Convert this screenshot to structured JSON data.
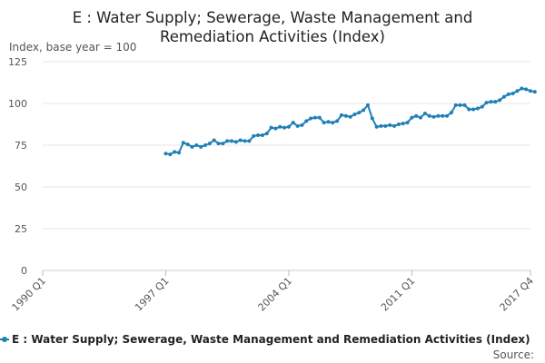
{
  "chart_data": {
    "type": "line",
    "title": "E : Water Supply; Sewerage, Waste Management and Remediation Activities (Index)",
    "title_lines": [
      "E : Water Supply; Sewerage, Waste Management and",
      "Remediation Activities (Index)"
    ],
    "ylabel": "Index, base year = 100",
    "xlabel": "",
    "ylim": [
      0,
      125
    ],
    "yticks": [
      0,
      25,
      50,
      75,
      100,
      125
    ],
    "ytick_labels": [
      "0",
      "25",
      "50",
      "75",
      "100",
      "125"
    ],
    "x_categories_span": [
      "1990 Q1",
      "2017 Q4"
    ],
    "xtick_labels": [
      "1990 Q1",
      "1997 Q1",
      "2004 Q1",
      "2011 Q1",
      "2017 Q4"
    ],
    "grid": "horizontal",
    "legend_position": "bottom",
    "source_label": "Source:",
    "series": [
      {
        "name": "E : Water Supply; Sewerage, Waste Management and Remediation Activities (Index)",
        "color": "#1f7fb6",
        "start_quarter": "1997 Q1",
        "values": [
          70,
          69.5,
          71,
          70.5,
          76.5,
          75.5,
          74,
          75,
          74,
          75,
          76,
          78,
          76,
          76,
          77.5,
          77.5,
          77,
          78,
          77.5,
          77.5,
          80.5,
          81,
          81,
          82,
          85.5,
          85,
          86,
          85.5,
          86,
          88.5,
          86.5,
          87,
          89.5,
          91,
          91.5,
          91.5,
          88.5,
          89,
          88.5,
          89.5,
          93,
          92.5,
          92,
          93.5,
          94.5,
          96,
          99,
          91,
          86,
          86.5,
          86.5,
          87,
          86.5,
          87.5,
          88,
          88.5,
          91.5,
          92.5,
          91.5,
          94,
          92.5,
          92,
          92.5,
          92.5,
          92.5,
          94.5,
          99,
          99,
          99,
          96.5,
          96.5,
          97,
          98,
          100.5,
          101,
          101,
          102,
          104,
          105.5,
          106,
          107.5,
          109,
          108.5,
          107.5,
          107
        ]
      }
    ]
  }
}
